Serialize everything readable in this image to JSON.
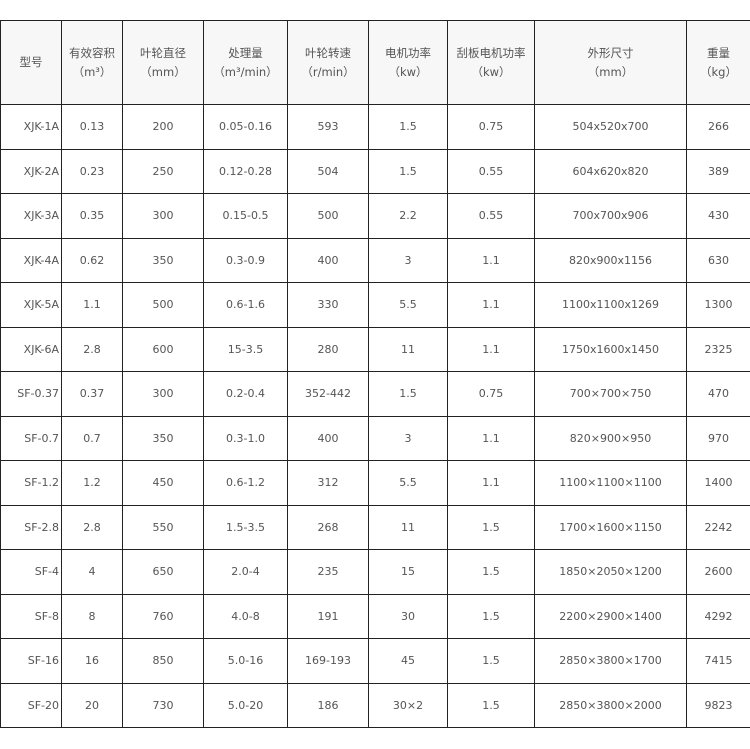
{
  "table": {
    "headers": [
      {
        "label": "型号",
        "unit": ""
      },
      {
        "label": "有效容积",
        "unit": "（m³）"
      },
      {
        "label": "叶轮直径",
        "unit": "（mm）"
      },
      {
        "label": "处理量",
        "unit": "（m³/min）"
      },
      {
        "label": "叶轮转速",
        "unit": "（r/min）"
      },
      {
        "label": "电机功率",
        "unit": "（kw）"
      },
      {
        "label": "刮板电机功率",
        "unit": "（kw）"
      },
      {
        "label": "外形尺寸",
        "unit": "（mm）"
      },
      {
        "label": "重量",
        "unit": "（kg）"
      }
    ],
    "rows": [
      [
        "XJK-1A",
        "0.13",
        "200",
        "0.05-0.16",
        "593",
        "1.5",
        "0.75",
        "504x520x700",
        "266"
      ],
      [
        "XJK-2A",
        "0.23",
        "250",
        "0.12-0.28",
        "504",
        "1.5",
        "0.55",
        "604x620x820",
        "389"
      ],
      [
        "XJK-3A",
        "0.35",
        "300",
        "0.15-0.5",
        "500",
        "2.2",
        "0.55",
        "700x700x906",
        "430"
      ],
      [
        "XJK-4A",
        "0.62",
        "350",
        "0.3-0.9",
        "400",
        "3",
        "1.1",
        "820x900x1156",
        "630"
      ],
      [
        "XJK-5A",
        "1.1",
        "500",
        "0.6-1.6",
        "330",
        "5.5",
        "1.1",
        "1100x1100x1269",
        "1300"
      ],
      [
        "XJK-6A",
        "2.8",
        "600",
        "15-3.5",
        "280",
        "11",
        "1.1",
        "1750x1600x1450",
        "2325"
      ],
      [
        "SF-0.37",
        "0.37",
        "300",
        "0.2-0.4",
        "352-442",
        "1.5",
        "0.75",
        "700×700×750",
        "470"
      ],
      [
        "SF-0.7",
        "0.7",
        "350",
        "0.3-1.0",
        "400",
        "3",
        "1.1",
        "820×900×950",
        "970"
      ],
      [
        "SF-1.2",
        "1.2",
        "450",
        "0.6-1.2",
        "312",
        "5.5",
        "1.1",
        "1100×1100×1100",
        "1400"
      ],
      [
        "SF-2.8",
        "2.8",
        "550",
        "1.5-3.5",
        "268",
        "11",
        "1.5",
        "1700×1600×1150",
        "2242"
      ],
      [
        "SF-4",
        "4",
        "650",
        "2.0-4",
        "235",
        "15",
        "1.5",
        "1850×2050×1200",
        "2600"
      ],
      [
        "SF-8",
        "8",
        "760",
        "4.0-8",
        "191",
        "30",
        "1.5",
        "2200×2900×1400",
        "4292"
      ],
      [
        "SF-16",
        "16",
        "850",
        "5.0-16",
        "169-193",
        "45",
        "1.5",
        "2850×3800×1700",
        "7415"
      ],
      [
        "SF-20",
        "20",
        "730",
        "5.0-20",
        "186",
        "30×2",
        "1.5",
        "2850×3800×2000",
        "9823"
      ]
    ]
  }
}
